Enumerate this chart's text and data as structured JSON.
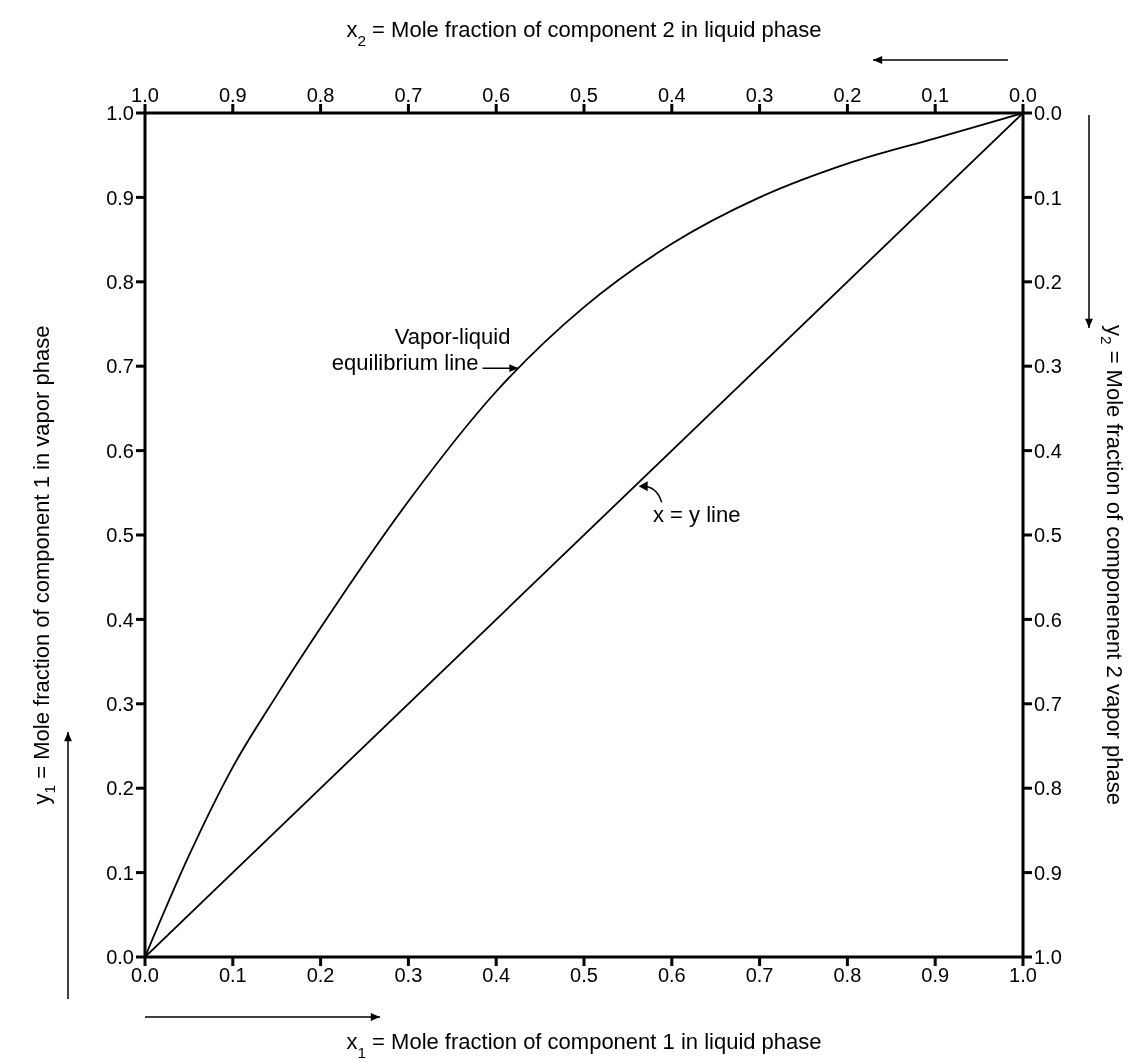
{
  "chart_data": {
    "type": "line",
    "xlabel": "x$_{1}$ = Mole fraction of component 1 in liquid phase",
    "ylabel": "y$_{1}$ = Mole fraction of component 1 in vapor phase",
    "x2label": "x$_{2}$ = Mole fraction of component 2 in liquid phase",
    "y2label": "y$_{2}$ = Mole fraction of componenent 2 vapor phase",
    "xlim": [
      0,
      1
    ],
    "ylim": [
      0,
      1
    ],
    "x2lim": [
      1,
      0
    ],
    "y2lim": [
      1,
      0
    ],
    "xticks": [
      {
        "value": 0,
        "label": "0.0"
      },
      0.1,
      0.2,
      0.3,
      0.4,
      0.5,
      0.6,
      0.7,
      0.8,
      0.9,
      {
        "value": 1,
        "label": "1.0"
      }
    ],
    "yticks": [
      {
        "value": 0,
        "label": "0.0"
      },
      0.1,
      0.2,
      0.3,
      0.4,
      0.5,
      0.6,
      0.7,
      0.8,
      0.9,
      {
        "value": 1,
        "label": "1.0"
      }
    ],
    "x2ticks": [
      {
        "value": 1,
        "label": "1.0"
      },
      0.9,
      0.8,
      0.7,
      0.6,
      0.5,
      0.4,
      0.3,
      0.2,
      0.1,
      {
        "value": 0,
        "label": "0.0"
      }
    ],
    "y2ticks": [
      {
        "value": 1,
        "label": "1.0"
      },
      0.9,
      0.8,
      0.7,
      0.6,
      0.5,
      0.4,
      0.3,
      0.2,
      0.1,
      {
        "value": 0,
        "label": "0.0"
      }
    ],
    "series": [
      {
        "color": "#000000",
        "x": [
          0,
          0.05,
          0.1,
          0.15,
          0.2,
          0.3,
          0.4,
          0.5,
          0.6,
          0.7,
          0.8,
          0.9,
          1
        ],
        "values": [
          0,
          0.12,
          0.225,
          0.31,
          0.39,
          0.54,
          0.67,
          0.77,
          0.845,
          0.9,
          0.94,
          0.97,
          1
        ]
      },
      {
        "color": "#000000",
        "x": [
          0,
          1
        ],
        "values": [
          0,
          1
        ]
      }
    ],
    "annotations": [
      {
        "text": "Vapor-liquid\nequilibrium line",
        "x": 0.43,
        "y": 0.7
      },
      {
        "text": "x = y  line",
        "x": 0.56,
        "y": 0.56
      }
    ]
  }
}
